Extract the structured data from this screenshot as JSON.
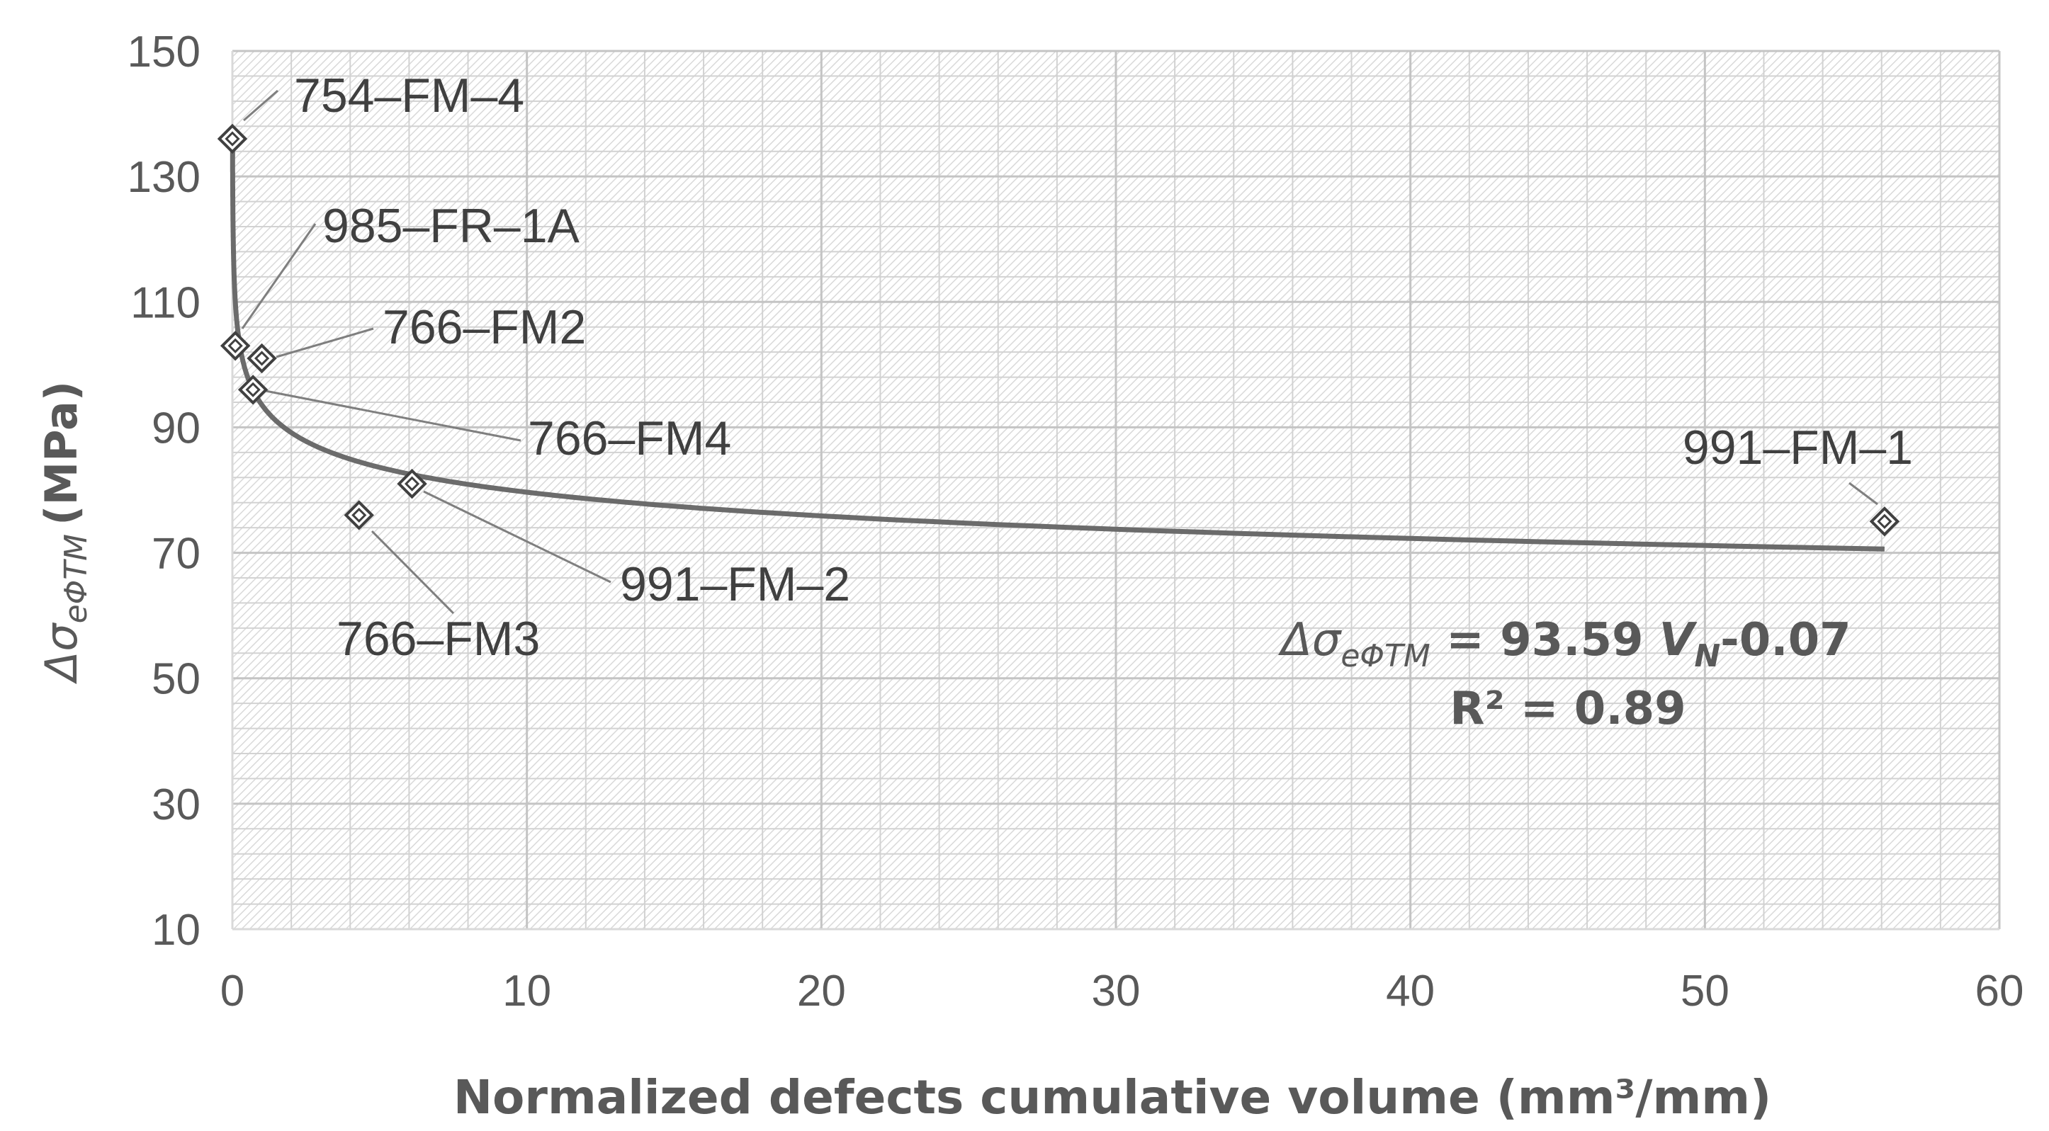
{
  "chart_data": {
    "type": "scatter",
    "title": "",
    "xlabel": "Normalized defects cumulative volume (mm³/mm)",
    "ylabel": {
      "delta": "Δσ",
      "subscript": "eΦTM",
      "units": "(MPa)"
    },
    "xlim": [
      0,
      60
    ],
    "ylim": [
      10,
      150
    ],
    "xticks": [
      0,
      10,
      20,
      30,
      40,
      50,
      60
    ],
    "yticks": [
      10,
      30,
      50,
      70,
      90,
      110,
      130,
      150
    ],
    "points": [
      {
        "name": "754–FM–4",
        "x": 0.0,
        "y": 136
      },
      {
        "name": "985–FR–1A",
        "x": 0.1,
        "y": 103
      },
      {
        "name": "766–FM2",
        "x": 1.0,
        "y": 101
      },
      {
        "name": "766–FM4",
        "x": 0.7,
        "y": 96
      },
      {
        "name": "991–FM–2",
        "x": 6.1,
        "y": 81
      },
      {
        "name": "766–FM3",
        "x": 4.3,
        "y": 76
      },
      {
        "name": "991–FM–1",
        "x": 56.1,
        "y": 75
      }
    ],
    "fit": {
      "type": "power",
      "coefficient": 93.59,
      "exponent": -0.07,
      "x_range": [
        0.005,
        56.1
      ]
    },
    "equation": {
      "lhs_delta": "Δσ",
      "lhs_sub": "eΦTM",
      "equals_coef": " = 93.59 ",
      "var": "V",
      "var_sub": "N",
      "exponent": "-0.07",
      "r2": "R² = 0.89"
    },
    "colors": {
      "axis": "#d9d9d9",
      "grid": "#c8c8c8",
      "hatch": "#d4d4d4",
      "curve": "#6b6b6b",
      "marker": "#404040",
      "text": "#595959"
    }
  }
}
